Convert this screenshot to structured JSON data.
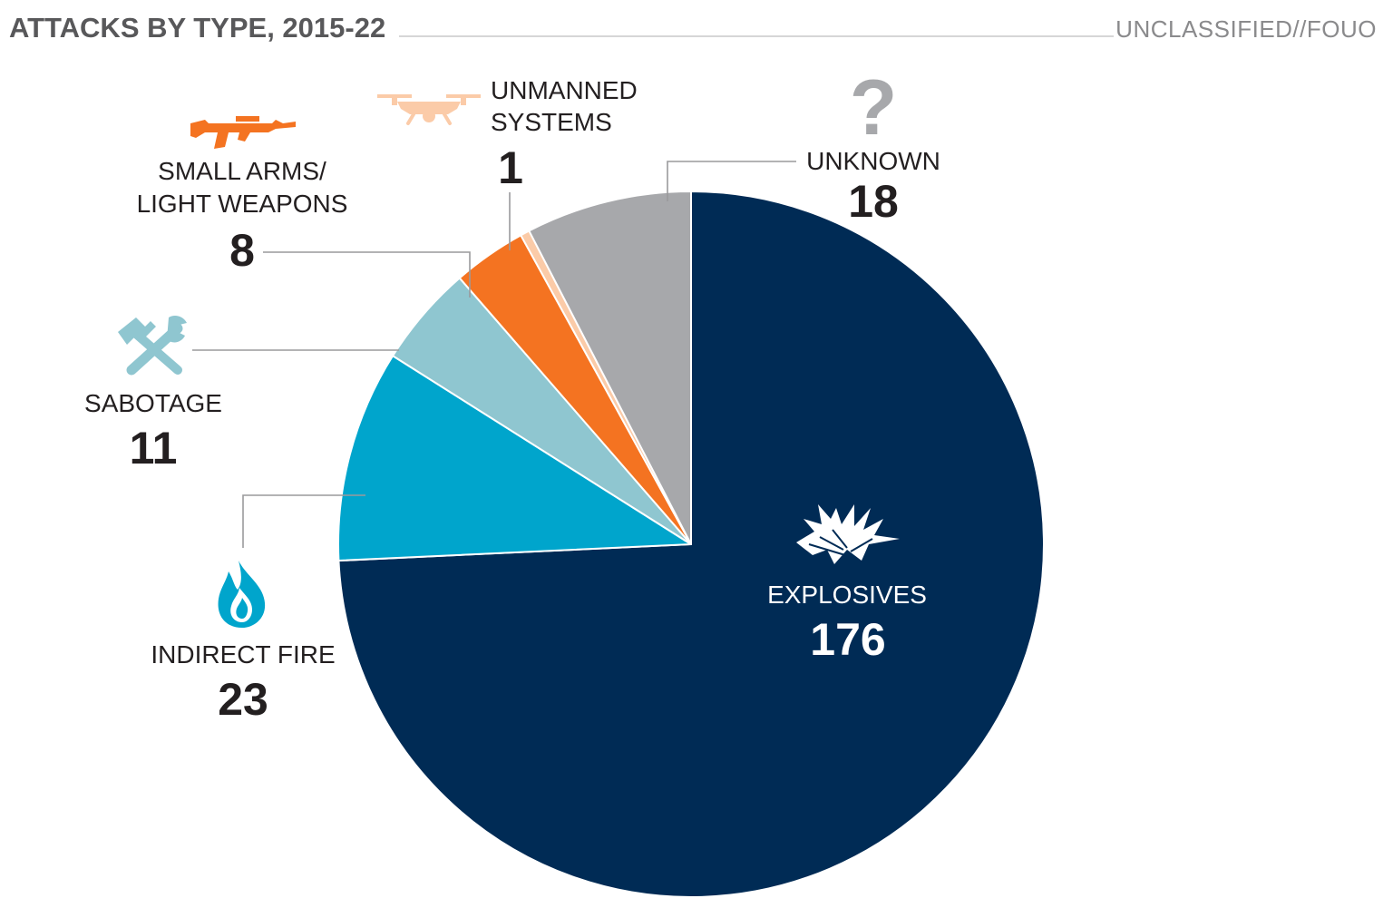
{
  "header": {
    "title": "ATTACKS BY TYPE, 2015-22",
    "classification": "UNCLASSIFIED//FOUO"
  },
  "chart_data": {
    "type": "pie",
    "title": "ATTACKS BY TYPE, 2015-22",
    "start_angle_deg": 0,
    "direction": "clockwise",
    "slices": [
      {
        "label": "EXPLOSIVES",
        "value": 176,
        "color": "#002b55",
        "icon": "explosion-icon"
      },
      {
        "label": "INDIRECT FIRE",
        "value": 23,
        "color": "#00a5cc",
        "icon": "fire-icon"
      },
      {
        "label": "SABOTAGE",
        "value": 11,
        "color": "#8fc6d0",
        "icon": "tools-icon"
      },
      {
        "label": "SMALL ARMS/ LIGHT WEAPONS",
        "label_lines": [
          "SMALL ARMS/",
          "LIGHT WEAPONS"
        ],
        "value": 8,
        "color": "#f47321",
        "icon": "rifle-icon"
      },
      {
        "label": "UNMANNED SYSTEMS",
        "label_lines": [
          "UNMANNED",
          "SYSTEMS"
        ],
        "value": 1,
        "color": "#fbcba8",
        "icon": "drone-icon"
      },
      {
        "label": "UNKNOWN",
        "value": 18,
        "color": "#a7a8ab",
        "icon": "question-icon"
      }
    ]
  },
  "colors": {
    "title": "#58585a",
    "classification": "#8a8a8c",
    "label_text": "#231f20",
    "leader_line": "#9a9a9c"
  }
}
